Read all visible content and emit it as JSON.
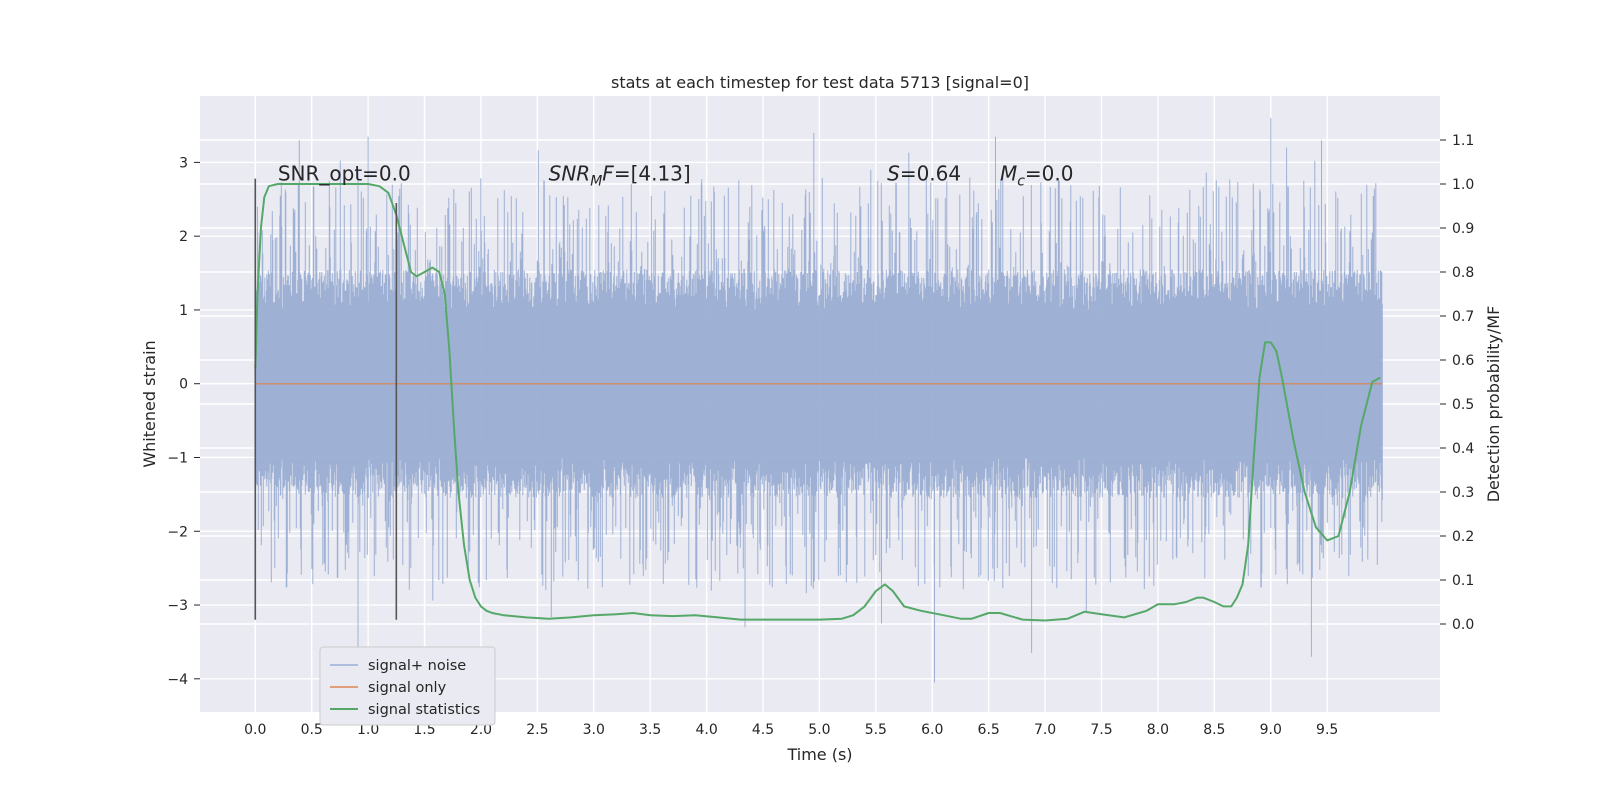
{
  "chart_data": {
    "type": "line",
    "title": "stats at each timestep for test data 5713 [signal=0]",
    "xlabel": "Time (s)",
    "ylabel": "Whitened strain",
    "y2label": "Detection probability/MF",
    "xlim": [
      -0.49,
      10.5
    ],
    "ylim": [
      -4.45,
      3.9
    ],
    "y2lim": [
      -0.2,
      1.2
    ],
    "x_ticks": [
      0.0,
      0.5,
      1.0,
      1.5,
      2.0,
      2.5,
      3.0,
      3.5,
      4.0,
      4.5,
      5.0,
      5.5,
      6.0,
      6.5,
      7.0,
      7.5,
      8.0,
      8.5,
      9.0,
      9.5
    ],
    "x_tick_labels": [
      "0.0",
      "0.5",
      "1.0",
      "1.5",
      "2.0",
      "2.5",
      "3.0",
      "3.5",
      "4.0",
      "4.5",
      "5.0",
      "5.5",
      "6.0",
      "6.5",
      "7.0",
      "7.5",
      "8.0",
      "8.5",
      "9.0",
      "9.5"
    ],
    "y_ticks": [
      -4,
      -3,
      -2,
      -1,
      0,
      1,
      2,
      3
    ],
    "y_tick_labels": [
      "−4",
      "−3",
      "−2",
      "−1",
      "0",
      "1",
      "2",
      "3"
    ],
    "y2_ticks": [
      0.0,
      0.1,
      0.2,
      0.3,
      0.4,
      0.5,
      0.6,
      0.7,
      0.8,
      0.9,
      1.0,
      1.1
    ],
    "y2_tick_labels": [
      "0.0",
      "0.1",
      "0.2",
      "0.3",
      "0.4",
      "0.5",
      "0.6",
      "0.7",
      "0.8",
      "0.9",
      "1.0",
      "1.1"
    ],
    "grid": true,
    "legend_position": "lower-left",
    "colors": {
      "background": "#eaeaf2",
      "grid": "#ffffff",
      "noise": "#9aaed3",
      "signal": "#dd8452",
      "stats": "#55a868",
      "marker": "#555555"
    },
    "series": [
      {
        "name": "signal+ noise",
        "axis": "left",
        "style": "dense-noise",
        "x_range": [
          0.0,
          9.99
        ],
        "core_amplitude": 1.0,
        "spike_range": [
          -4.05,
          3.6
        ],
        "notable_peaks": [
          {
            "x": 0.02,
            "y": 2.4
          },
          {
            "x": 0.39,
            "y": 3.3
          },
          {
            "x": 0.91,
            "y": 2.9
          },
          {
            "x": 1.0,
            "y": 3.35
          },
          {
            "x": 0.91,
            "y": -3.75
          },
          {
            "x": 4.34,
            "y": -3.3
          },
          {
            "x": 4.95,
            "y": 3.4
          },
          {
            "x": 5.55,
            "y": -3.25
          },
          {
            "x": 6.02,
            "y": -4.05
          },
          {
            "x": 6.56,
            "y": 3.35
          },
          {
            "x": 6.88,
            "y": -3.65
          },
          {
            "x": 9.0,
            "y": 3.6
          },
          {
            "x": 9.14,
            "y": 3.2
          },
          {
            "x": 9.36,
            "y": -3.7
          },
          {
            "x": 9.45,
            "y": 3.3
          }
        ]
      },
      {
        "name": "signal only",
        "axis": "left",
        "x": [
          0.0,
          9.99
        ],
        "y": [
          0.0,
          0.0
        ]
      },
      {
        "name": "signal statistics",
        "axis": "right",
        "x": [
          0.0,
          0.02,
          0.05,
          0.08,
          0.12,
          0.2,
          0.3,
          0.4,
          0.55,
          0.7,
          0.85,
          1.0,
          1.1,
          1.18,
          1.25,
          1.32,
          1.38,
          1.43,
          1.5,
          1.57,
          1.63,
          1.68,
          1.72,
          1.76,
          1.8,
          1.85,
          1.9,
          1.95,
          2.0,
          2.05,
          2.1,
          2.2,
          2.4,
          2.6,
          2.8,
          3.0,
          3.2,
          3.35,
          3.5,
          3.7,
          3.9,
          4.1,
          4.3,
          4.5,
          4.8,
          5.0,
          5.2,
          5.3,
          5.4,
          5.5,
          5.58,
          5.65,
          5.75,
          5.9,
          6.0,
          6.1,
          6.25,
          6.35,
          6.5,
          6.6,
          6.8,
          7.0,
          7.2,
          7.35,
          7.5,
          7.7,
          7.9,
          8.0,
          8.15,
          8.25,
          8.35,
          8.4,
          8.5,
          8.58,
          8.65,
          8.7,
          8.75,
          8.8,
          8.85,
          8.9,
          8.95,
          9.0,
          9.05,
          9.1,
          9.2,
          9.3,
          9.4,
          9.5,
          9.6,
          9.7,
          9.8,
          9.9,
          9.97
        ],
        "y": [
          0.58,
          0.75,
          0.9,
          0.97,
          0.995,
          1.0,
          1.0,
          1.0,
          1.0,
          1.0,
          1.0,
          1.0,
          0.995,
          0.98,
          0.93,
          0.86,
          0.8,
          0.79,
          0.8,
          0.81,
          0.8,
          0.75,
          0.62,
          0.45,
          0.3,
          0.18,
          0.1,
          0.06,
          0.04,
          0.03,
          0.025,
          0.02,
          0.015,
          0.012,
          0.015,
          0.02,
          0.022,
          0.025,
          0.02,
          0.018,
          0.02,
          0.015,
          0.01,
          0.01,
          0.01,
          0.01,
          0.012,
          0.02,
          0.04,
          0.075,
          0.09,
          0.075,
          0.04,
          0.03,
          0.025,
          0.02,
          0.012,
          0.012,
          0.025,
          0.025,
          0.01,
          0.008,
          0.012,
          0.028,
          0.022,
          0.015,
          0.03,
          0.045,
          0.045,
          0.05,
          0.06,
          0.06,
          0.05,
          0.04,
          0.04,
          0.06,
          0.09,
          0.18,
          0.38,
          0.56,
          0.64,
          0.64,
          0.62,
          0.56,
          0.42,
          0.3,
          0.22,
          0.19,
          0.2,
          0.3,
          0.45,
          0.55,
          0.56
        ]
      }
    ],
    "vertical_markers": [
      {
        "x": 0.0,
        "y_range": [
          -3.2,
          2.78
        ]
      },
      {
        "x": 1.25,
        "y_range": [
          -3.2,
          2.45
        ]
      }
    ],
    "annotations": [
      {
        "text": "SNR_opt=0.0",
        "x": 0.2,
        "y": 2.85,
        "html": false
      },
      {
        "text": "SNR_MF=[4.13]",
        "x": 2.6,
        "y": 2.85,
        "base": "SNR",
        "sub": "M",
        "rest": "F=[4.13]"
      },
      {
        "text": "S=0.64",
        "x": 5.6,
        "y": 2.85,
        "base": "S",
        "sub": "",
        "rest": "=0.64"
      },
      {
        "text": "M_c=0.0",
        "x": 6.6,
        "y": 2.85,
        "base": "M",
        "sub": "c",
        "rest": "=0.0"
      }
    ],
    "legend": [
      "signal+ noise",
      "signal only",
      "signal statistics"
    ]
  }
}
